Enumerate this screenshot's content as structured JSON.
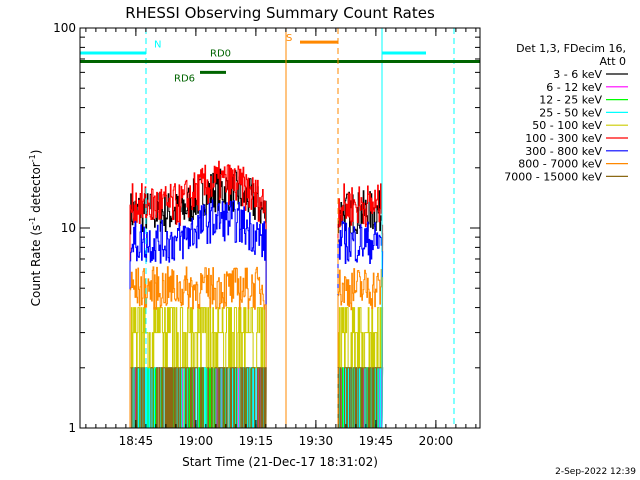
{
  "chart_data": {
    "type": "line",
    "title": "RHESSI Observing Summary Count Rates",
    "xlabel": "Start Time (21-Dec-17 18:31:02)",
    "ylabel_main": "Count Rate (s",
    "ylabel_sup": "-1",
    "ylabel_mid": " detector",
    "ylabel_end": ")",
    "x_unit": "minutes since 18:31:02",
    "xlim": [
      0,
      100
    ],
    "ylim": [
      1,
      100
    ],
    "yscale": "log",
    "x_ticks": [
      {
        "label": "18:45",
        "x": 13.97
      },
      {
        "label": "19:00",
        "x": 28.97
      },
      {
        "label": "19:15",
        "x": 43.97
      },
      {
        "label": "19:30",
        "x": 58.97
      },
      {
        "label": "19:45",
        "x": 73.97
      },
      {
        "label": "20:00",
        "x": 88.97
      }
    ],
    "y_ticks": [
      {
        "label": "1",
        "y": 1
      },
      {
        "label": "10",
        "y": 10
      },
      {
        "label": "100",
        "y": 100
      }
    ],
    "legend_header": [
      "Det 1,3, FDecim 16,",
      "Att 0"
    ],
    "legend_position": "right",
    "series": [
      {
        "name": "3 - 6 keV",
        "color": "#000000",
        "level": 12.0
      },
      {
        "name": "6 - 12 keV",
        "color": "#ff00ff",
        "level": 1.5
      },
      {
        "name": "12 - 25 keV",
        "color": "#00ff00",
        "level": 1.5
      },
      {
        "name": "25 - 50 keV",
        "color": "#00ffff",
        "level": 1.3
      },
      {
        "name": "50 - 100 keV",
        "color": "#cccc00",
        "level": 3.5
      },
      {
        "name": "100 - 300 keV",
        "color": "#ff0000",
        "level": 13.0
      },
      {
        "name": "300 - 800 keV",
        "color": "#0000ff",
        "level": 8.5
      },
      {
        "name": "800 - 7000 keV",
        "color": "#ff8800",
        "level": 5.0
      },
      {
        "name": "7000 - 15000 keV",
        "color": "#8b6914",
        "level": 1.2
      }
    ],
    "data_segments": [
      [
        12.5,
        46.5
      ],
      [
        64.5,
        75.5
      ]
    ],
    "flags": [
      {
        "label": "N",
        "color": "#00ffff",
        "y": 75,
        "segments": [
          [
            0,
            16.5
          ],
          [
            75.5,
            86.5
          ]
        ],
        "vlines": [
          0,
          16.5,
          75.5,
          93.5
        ],
        "vline_styles": [
          "solid",
          "dashed",
          "solid",
          "dashed"
        ],
        "label_x": 18.5,
        "label_y": 80
      },
      {
        "label": "RD6",
        "color": "#006400",
        "y": 60,
        "segments": [
          [
            30,
            36.5
          ]
        ],
        "label_x": 23.5,
        "label_y": 54
      },
      {
        "label": "RD0",
        "color": "#006400",
        "y": 68,
        "segments": [
          [
            0,
            100
          ]
        ],
        "label_x": 32.5,
        "label_y": 72
      },
      {
        "label": "S",
        "color": "#ff8800",
        "y": 85,
        "segments": [
          [
            55,
            64.5
          ]
        ],
        "vlines": [
          51.5,
          64.5
        ],
        "vline_styles": [
          "solid",
          "dashed"
        ],
        "label_x": 51.5,
        "label_y": 86
      }
    ]
  },
  "footer_date": "2-Sep-2022 12:39"
}
